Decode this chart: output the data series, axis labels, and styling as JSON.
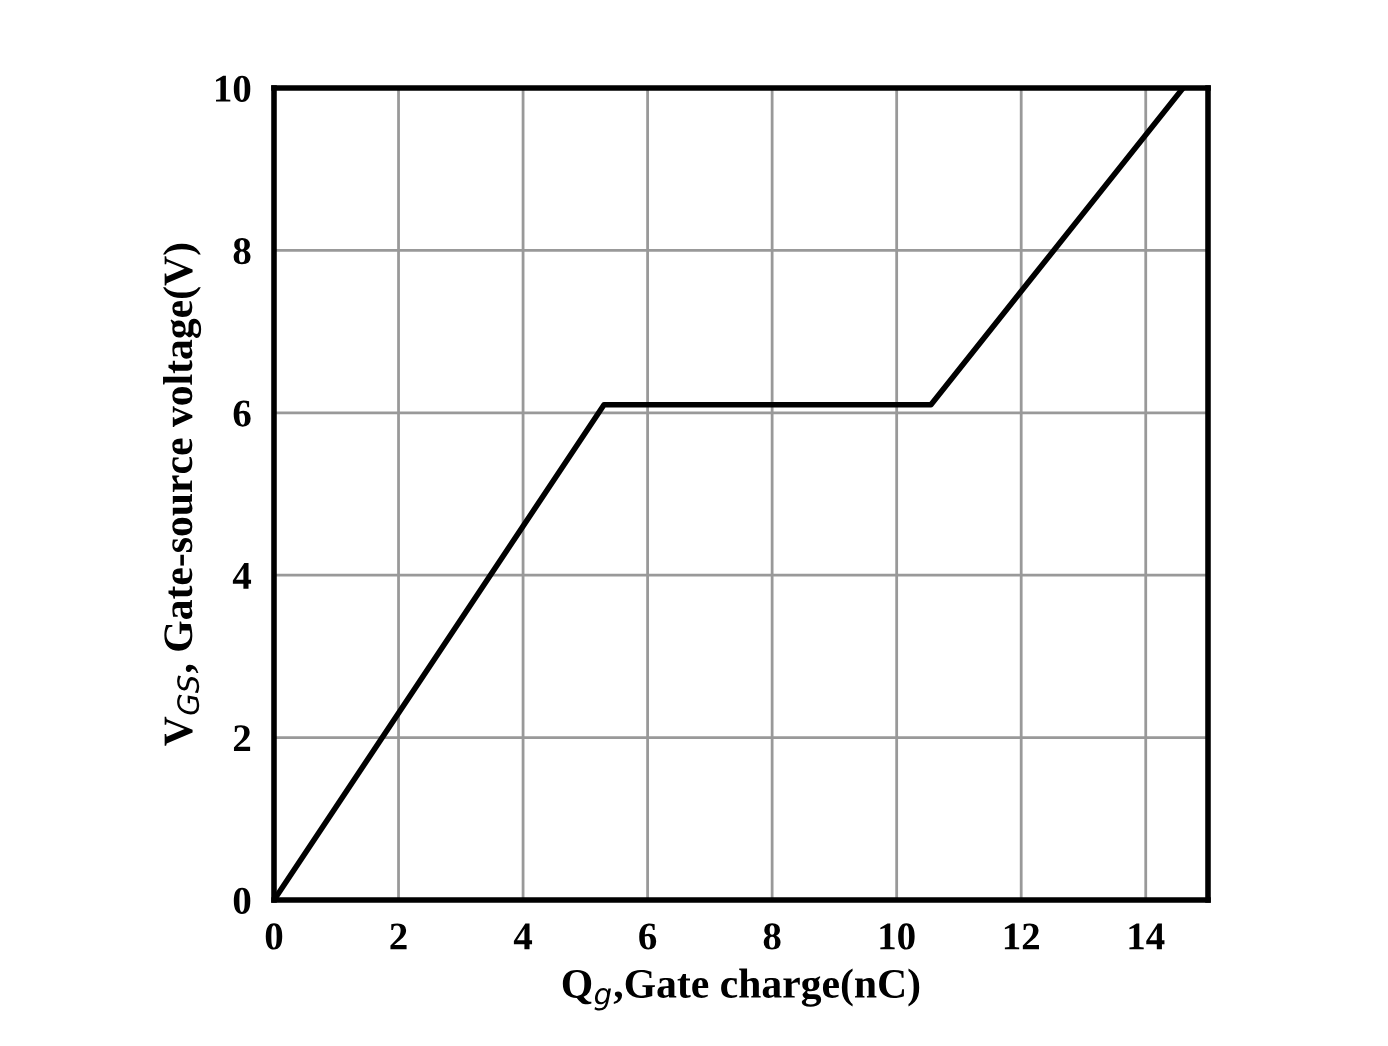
{
  "chart_data": {
    "type": "line",
    "xlabel": "Q$_{g}$,Gate charge(nC)",
    "ylabel": "V$_{GS}$, Gate-source voltage(V)",
    "x": [
      0,
      5.3,
      10.55,
      14.6
    ],
    "series": [
      {
        "color": "#000000",
        "values": [
          0,
          6.1,
          6.1,
          10
        ]
      }
    ],
    "xlim": [
      0,
      15
    ],
    "xticks": [
      0,
      2,
      4,
      6,
      8,
      10,
      12,
      14
    ],
    "ylim": [
      0,
      10
    ],
    "yticks": [
      0,
      2,
      4,
      6,
      8,
      10
    ],
    "grid": true,
    "legend": false,
    "marker": "none",
    "line_style": "solid"
  }
}
